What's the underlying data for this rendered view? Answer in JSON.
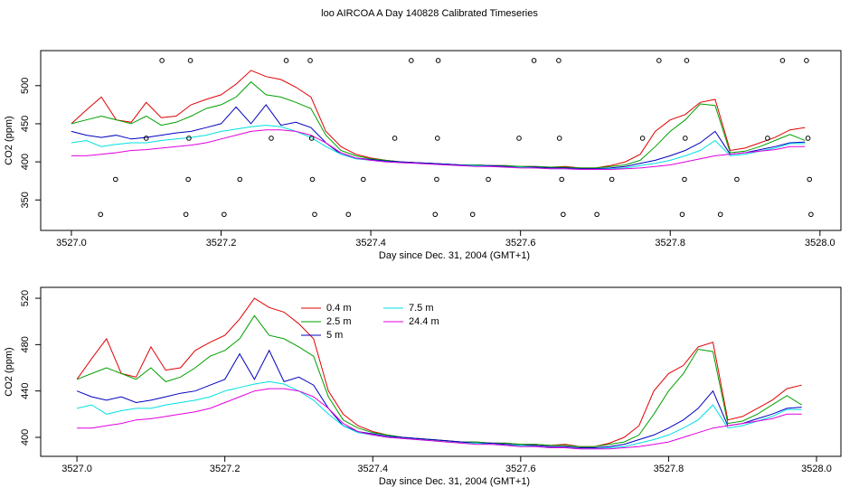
{
  "title": "loo AIRCOA A  Day 140828  Calibrated Timeseries",
  "chart_data": [
    {
      "type": "line",
      "xlabel": "Day since Dec. 31, 2004 (GMT+1)",
      "ylabel": "CO2 (ppm)",
      "xlim": [
        3526.959,
        3528.028
      ],
      "ylim": [
        310,
        546
      ],
      "xticks": [
        {
          "value": 3527,
          "label": "3527.0"
        },
        3527.2,
        3527.4,
        3527.6,
        3527.8,
        {
          "value": 3528,
          "label": "3528.0"
        }
      ],
      "yticks": [
        350,
        400,
        450,
        500
      ],
      "x": [
        3527.0,
        3527.02,
        3527.04,
        3527.06,
        3527.08,
        3527.1,
        3527.12,
        3527.14,
        3527.16,
        3527.18,
        3527.2,
        3527.22,
        3527.24,
        3527.26,
        3527.28,
        3527.3,
        3527.32,
        3527.34,
        3527.36,
        3527.38,
        3527.4,
        3527.42,
        3527.44,
        3527.46,
        3527.48,
        3527.5,
        3527.52,
        3527.54,
        3527.56,
        3527.58,
        3527.6,
        3527.62,
        3527.64,
        3527.66,
        3527.68,
        3527.7,
        3527.72,
        3527.74,
        3527.76,
        3527.78,
        3527.8,
        3527.82,
        3527.84,
        3527.86,
        3527.88,
        3527.9,
        3527.92,
        3527.94,
        3527.96,
        3527.98
      ],
      "series": [
        {
          "color": "#e00000",
          "values": [
            450,
            468,
            485,
            455,
            452,
            478,
            458,
            460,
            475,
            482,
            488,
            502,
            520,
            512,
            508,
            498,
            485,
            440,
            420,
            410,
            405,
            402,
            400,
            399,
            398,
            397,
            396,
            396,
            395,
            395,
            394,
            394,
            393,
            394,
            392,
            392,
            395,
            400,
            410,
            440,
            455,
            462,
            478,
            482,
            415,
            418,
            425,
            432,
            442,
            445
          ]
        },
        {
          "color": "#00a000",
          "values": [
            450,
            455,
            460,
            455,
            450,
            460,
            448,
            452,
            460,
            470,
            475,
            485,
            505,
            488,
            485,
            478,
            470,
            435,
            415,
            408,
            404,
            402,
            400,
            399,
            398,
            397,
            396,
            396,
            395,
            395,
            394,
            394,
            393,
            393,
            392,
            392,
            394,
            396,
            402,
            420,
            440,
            455,
            476,
            474,
            412,
            414,
            420,
            428,
            436,
            428
          ]
        },
        {
          "color": "#0000c0",
          "values": [
            440,
            435,
            432,
            435,
            430,
            432,
            435,
            438,
            440,
            445,
            450,
            472,
            450,
            475,
            448,
            452,
            445,
            425,
            410,
            405,
            403,
            401,
            400,
            399,
            398,
            397,
            396,
            395,
            395,
            394,
            393,
            393,
            392,
            392,
            391,
            391,
            392,
            394,
            398,
            402,
            408,
            415,
            425,
            440,
            410,
            412,
            416,
            420,
            425,
            426
          ]
        },
        {
          "color": "#00e0e0",
          "values": [
            425,
            428,
            420,
            423,
            425,
            425,
            428,
            430,
            432,
            435,
            440,
            443,
            446,
            448,
            446,
            440,
            432,
            420,
            410,
            404,
            402,
            400,
            399,
            398,
            397,
            396,
            395,
            395,
            394,
            393,
            393,
            392,
            391,
            391,
            390,
            390,
            391,
            392,
            395,
            398,
            402,
            408,
            415,
            428,
            408,
            410,
            414,
            418,
            424,
            424
          ]
        },
        {
          "color": "#e000e0",
          "values": [
            408,
            408,
            410,
            412,
            415,
            416,
            418,
            420,
            422,
            425,
            430,
            435,
            440,
            442,
            442,
            440,
            435,
            425,
            412,
            405,
            402,
            400,
            399,
            398,
            397,
            396,
            395,
            394,
            394,
            393,
            392,
            392,
            391,
            391,
            390,
            390,
            390,
            391,
            392,
            394,
            396,
            400,
            404,
            408,
            410,
            412,
            414,
            416,
            420,
            420
          ]
        },
        {
          "color": "#000000",
          "marker": "circle",
          "x": [
            3527.039,
            3527.059,
            3527.1,
            3527.121,
            3527.153,
            3527.156,
            3527.157,
            3527.159,
            3527.204,
            3527.225,
            3527.267,
            3527.287,
            3527.319,
            3527.321,
            3527.322,
            3527.325,
            3527.37,
            3527.39,
            3527.432,
            3527.454,
            3527.486,
            3527.488,
            3527.489,
            3527.49,
            3527.536,
            3527.557,
            3527.598,
            3527.618,
            3527.651,
            3527.652,
            3527.655,
            3527.657,
            3527.702,
            3527.722,
            3527.763,
            3527.785,
            3527.816,
            3527.819,
            3527.82,
            3527.822,
            3527.867,
            3527.889,
            3527.93,
            3527.95,
            3527.982,
            3527.984,
            3527.986,
            3527.988
          ],
          "values": [
            331,
            377,
            431,
            533,
            331,
            377,
            431,
            533,
            331,
            377,
            431,
            533,
            533,
            431,
            377,
            331,
            331,
            377,
            431,
            533,
            331,
            377,
            431,
            533,
            331,
            377,
            431,
            533,
            533,
            431,
            377,
            331,
            331,
            377,
            431,
            533,
            331,
            377,
            431,
            533,
            331,
            377,
            431,
            533,
            533,
            431,
            377,
            331
          ]
        }
      ]
    },
    {
      "type": "line",
      "xlabel": "Day since Dec. 31, 2004 (GMT+1)",
      "ylabel": "CO2 (ppm)",
      "xlim": [
        3526.951,
        3528.033
      ],
      "ylim": [
        383.6,
        529.4
      ],
      "xticks": [
        {
          "value": 3527,
          "label": "3527.0"
        },
        3527.2,
        3527.4,
        3527.6,
        3527.8,
        {
          "value": 3528,
          "label": "3528.0"
        }
      ],
      "yticks": [
        400,
        440,
        480,
        520
      ],
      "x": [
        3527.0,
        3527.02,
        3527.04,
        3527.06,
        3527.08,
        3527.1,
        3527.12,
        3527.14,
        3527.16,
        3527.18,
        3527.2,
        3527.22,
        3527.24,
        3527.26,
        3527.28,
        3527.3,
        3527.32,
        3527.34,
        3527.36,
        3527.38,
        3527.4,
        3527.42,
        3527.44,
        3527.46,
        3527.48,
        3527.5,
        3527.52,
        3527.54,
        3527.56,
        3527.58,
        3527.6,
        3527.62,
        3527.64,
        3527.66,
        3527.68,
        3527.7,
        3527.72,
        3527.74,
        3527.76,
        3527.78,
        3527.8,
        3527.82,
        3527.84,
        3527.86,
        3527.88,
        3527.9,
        3527.92,
        3527.94,
        3527.96,
        3527.98
      ],
      "series": [
        {
          "name": "0.4 m",
          "color": "#e00000",
          "values": [
            450,
            468,
            485,
            455,
            452,
            478,
            458,
            460,
            475,
            482,
            488,
            502,
            520,
            512,
            508,
            498,
            485,
            440,
            420,
            410,
            405,
            402,
            400,
            399,
            398,
            397,
            396,
            396,
            395,
            395,
            394,
            394,
            393,
            394,
            392,
            392,
            395,
            400,
            410,
            440,
            455,
            462,
            478,
            482,
            415,
            418,
            425,
            432,
            442,
            445
          ]
        },
        {
          "name": "2.5 m",
          "color": "#00a000",
          "values": [
            450,
            455,
            460,
            455,
            450,
            460,
            448,
            452,
            460,
            470,
            475,
            485,
            505,
            488,
            485,
            478,
            470,
            435,
            415,
            408,
            404,
            402,
            400,
            399,
            398,
            397,
            396,
            396,
            395,
            395,
            394,
            394,
            393,
            393,
            392,
            392,
            394,
            396,
            402,
            420,
            440,
            455,
            476,
            474,
            412,
            414,
            420,
            428,
            436,
            428
          ]
        },
        {
          "name": "5 m",
          "color": "#0000c0",
          "values": [
            440,
            435,
            432,
            435,
            430,
            432,
            435,
            438,
            440,
            445,
            450,
            472,
            450,
            475,
            448,
            452,
            445,
            425,
            410,
            405,
            403,
            401,
            400,
            399,
            398,
            397,
            396,
            395,
            395,
            394,
            393,
            393,
            392,
            392,
            391,
            391,
            392,
            394,
            398,
            402,
            408,
            415,
            425,
            440,
            410,
            412,
            416,
            420,
            425,
            426
          ]
        },
        {
          "name": "7.5 m",
          "color": "#00e0e0",
          "values": [
            425,
            428,
            420,
            423,
            425,
            425,
            428,
            430,
            432,
            435,
            440,
            443,
            446,
            448,
            446,
            440,
            432,
            420,
            410,
            404,
            402,
            400,
            399,
            398,
            397,
            396,
            395,
            395,
            394,
            393,
            393,
            392,
            391,
            391,
            390,
            390,
            391,
            392,
            395,
            398,
            402,
            408,
            415,
            428,
            408,
            410,
            414,
            418,
            424,
            424
          ]
        },
        {
          "name": "24.4 m",
          "color": "#e000e0",
          "values": [
            408,
            408,
            410,
            412,
            415,
            416,
            418,
            420,
            422,
            425,
            430,
            435,
            440,
            442,
            442,
            440,
            435,
            425,
            412,
            405,
            402,
            400,
            399,
            398,
            397,
            396,
            395,
            394,
            394,
            393,
            392,
            392,
            391,
            391,
            390,
            390,
            390,
            391,
            392,
            394,
            396,
            400,
            404,
            408,
            410,
            412,
            414,
            416,
            420,
            420
          ]
        }
      ]
    }
  ]
}
